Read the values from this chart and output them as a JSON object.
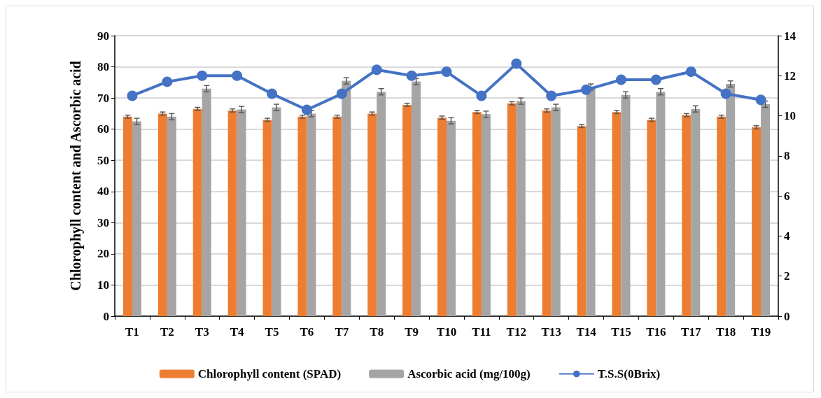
{
  "chart_data": {
    "type": "bar",
    "ylabel": "Chlorophyll content and Ascorbic acid",
    "categories": [
      "T1",
      "T2",
      "T3",
      "T4",
      "T5",
      "T6",
      "T7",
      "T8",
      "T9",
      "T10",
      "T11",
      "T12",
      "T13",
      "T14",
      "T15",
      "T16",
      "T17",
      "T18",
      "T19"
    ],
    "series": [
      {
        "name": "Chlorophyll content (SPAD)",
        "color": "#ed7d31",
        "values": [
          64,
          65,
          66.5,
          66,
          63,
          64,
          64,
          65,
          67.8,
          63.7,
          65.5,
          68.3,
          66,
          61,
          65.5,
          63,
          64.5,
          64,
          60.6
        ],
        "errors": [
          0.5,
          0.5,
          0.5,
          0.5,
          0.5,
          0.5,
          0.5,
          0.5,
          0.5,
          0.5,
          0.5,
          0.5,
          0.5,
          0.5,
          0.5,
          0.5,
          0.5,
          0.5,
          0.5
        ]
      },
      {
        "name": "Ascorbic acid (mg/100g)",
        "color": "#a5a5a5",
        "values": [
          62.5,
          64,
          73,
          66.3,
          67,
          65,
          75.5,
          72,
          75.3,
          62.7,
          64.8,
          69,
          67,
          73.5,
          71,
          72,
          66.5,
          74.5,
          68
        ],
        "errors": [
          1,
          1,
          1,
          1,
          1,
          1,
          1,
          1,
          1,
          1,
          1,
          1,
          1,
          1,
          1,
          1,
          1,
          1,
          1
        ]
      },
      {
        "name": "T.S.S(0Brix)",
        "type": "line",
        "axis": "y2",
        "color": "#4472c4",
        "values": [
          11.0,
          11.7,
          12.0,
          12.0,
          11.1,
          10.3,
          11.1,
          12.3,
          12.0,
          12.2,
          11.0,
          12.6,
          11.0,
          11.3,
          11.8,
          11.8,
          12.2,
          11.1,
          10.8
        ]
      }
    ],
    "ylim": [
      0,
      90
    ],
    "yticks": [
      0,
      10,
      20,
      30,
      40,
      50,
      60,
      70,
      80,
      90
    ],
    "y2lim": [
      0,
      14
    ],
    "y2ticks": [
      0,
      2,
      4,
      6,
      8,
      10,
      12,
      14
    ],
    "grid": "y",
    "legend": "bottom",
    "marker": "circle",
    "line_style": "solid"
  }
}
